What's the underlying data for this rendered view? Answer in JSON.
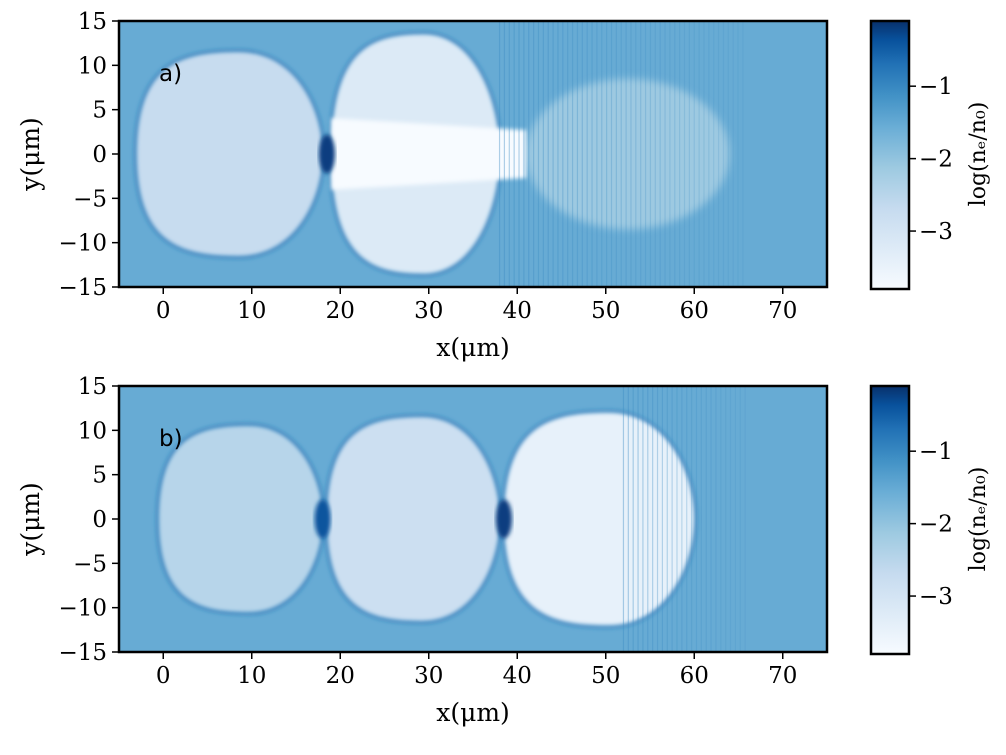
{
  "figure": {
    "colormap": [
      "#f7fbff",
      "#deebf7",
      "#c6dbef",
      "#9ecae1",
      "#6baed6",
      "#4292c6",
      "#2171b5",
      "#08519c",
      "#08306b"
    ]
  },
  "chart_data": [
    {
      "type": "heatmap",
      "panel_label": "a)",
      "xlabel": "x(μm)",
      "ylabel": "y(μm)",
      "xlim": [
        -5,
        75
      ],
      "ylim": [
        -15,
        15
      ],
      "x_ticks": [
        0,
        10,
        20,
        30,
        40,
        50,
        60,
        70
      ],
      "y_ticks": [
        -15,
        -10,
        -5,
        0,
        5,
        10,
        15
      ],
      "tick_labels_x": [
        "0",
        "10",
        "20",
        "30",
        "40",
        "50",
        "60",
        "70"
      ],
      "tick_labels_y": [
        "−15",
        "−10",
        "−5",
        "0",
        "5",
        "10",
        "15"
      ],
      "colorbar": {
        "label": "log(nₑ/n₀)",
        "range": [
          -3.8,
          -0.1
        ],
        "ticks": [
          -1,
          -2,
          -3
        ],
        "tick_labels": [
          "−1",
          "−2",
          "−3"
        ]
      },
      "features": {
        "background_level": -1.9,
        "cavities": [
          {
            "x_start": -3,
            "x_end": 18,
            "half_height": 11.5,
            "level": -2.9
          },
          {
            "x_start": 19,
            "x_end": 38,
            "half_height": 13.5,
            "level": -3.3
          }
        ],
        "dense_spikes": [
          {
            "x": 18.5,
            "y": 0,
            "level": -0.3
          }
        ],
        "void_channel": {
          "x_start": 19,
          "x_end": 41,
          "half_height": 4.5,
          "level": -3.8
        },
        "faint_region": {
          "x_start": 41,
          "x_end": 64,
          "half_height": 8.5,
          "level": -2.4
        },
        "modulation_band": {
          "x_start": 38,
          "x_end": 66
        }
      }
    },
    {
      "type": "heatmap",
      "panel_label": "b)",
      "xlabel": "x(μm)",
      "ylabel": "y(μm)",
      "xlim": [
        -5,
        75
      ],
      "ylim": [
        -15,
        15
      ],
      "x_ticks": [
        0,
        10,
        20,
        30,
        40,
        50,
        60,
        70
      ],
      "y_ticks": [
        -15,
        -10,
        -5,
        0,
        5,
        10,
        15
      ],
      "tick_labels_x": [
        "0",
        "10",
        "20",
        "30",
        "40",
        "50",
        "60",
        "70"
      ],
      "tick_labels_y": [
        "−15",
        "−10",
        "−5",
        "0",
        "5",
        "10",
        "15"
      ],
      "colorbar": {
        "label": "log(nₑ/n₀)",
        "range": [
          -3.8,
          -0.1
        ],
        "ticks": [
          -1,
          -2,
          -3
        ],
        "tick_labels": [
          "−1",
          "−2",
          "−3"
        ]
      },
      "features": {
        "background_level": -1.9,
        "cavities": [
          {
            "x_start": -0.5,
            "x_end": 18,
            "half_height": 10.5,
            "level": -2.7
          },
          {
            "x_start": 18.5,
            "x_end": 38,
            "half_height": 11.5,
            "level": -3.0
          },
          {
            "x_start": 38.5,
            "x_end": 60,
            "half_height": 12,
            "level": -3.5
          }
        ],
        "dense_spikes": [
          {
            "x": 18,
            "y": 0,
            "level": -0.6
          },
          {
            "x": 38.5,
            "y": 0,
            "level": -0.3
          }
        ],
        "modulation_band": {
          "x_start": 52,
          "x_end": 66
        }
      }
    }
  ]
}
